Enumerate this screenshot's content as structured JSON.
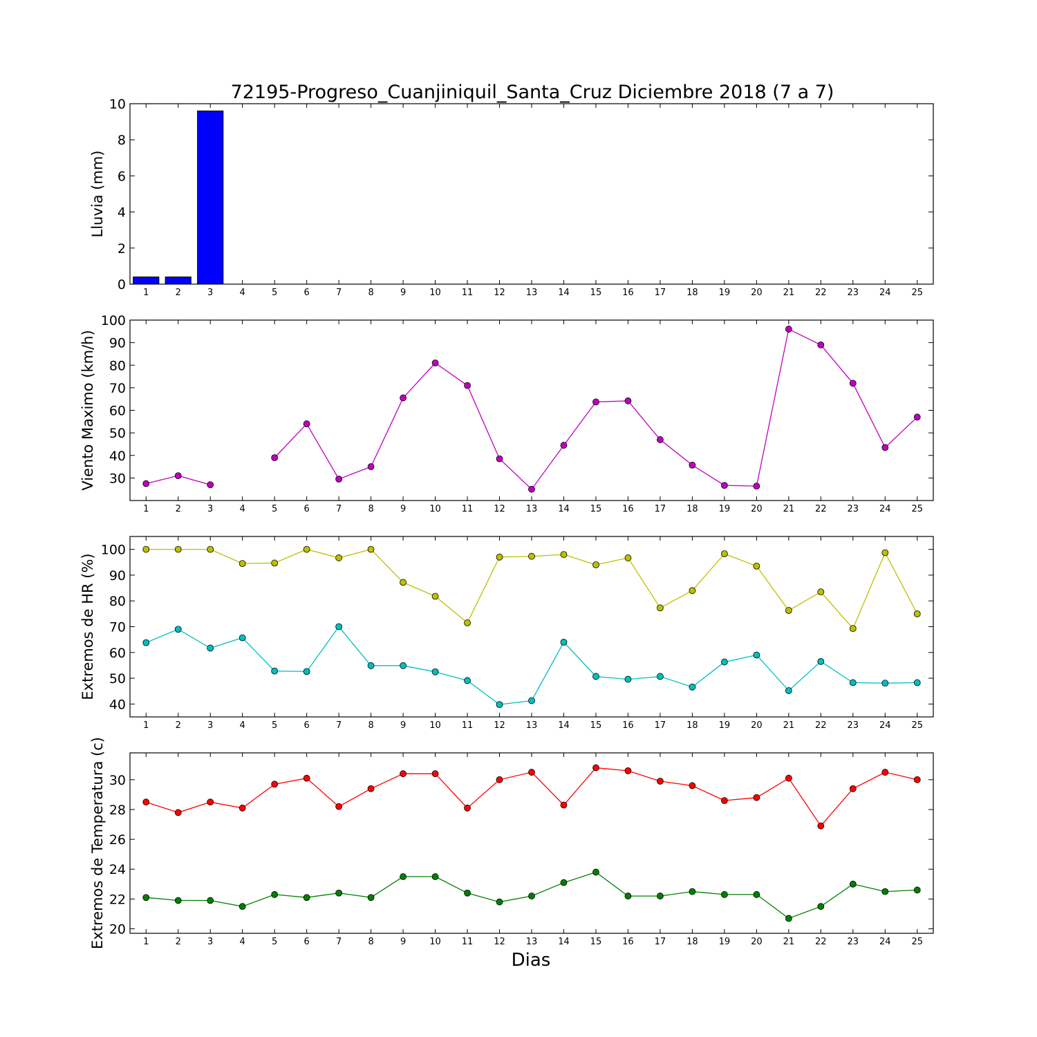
{
  "chart_data": {
    "title": "72195-Progreso_Cuanjiniquil_Santa_Cruz Diciembre 2018  (7 a 7)",
    "xlabel": "Dias",
    "days": [
      1,
      2,
      3,
      4,
      5,
      6,
      7,
      8,
      9,
      10,
      11,
      12,
      13,
      14,
      15,
      16,
      17,
      18,
      19,
      20,
      21,
      22,
      23,
      24,
      25
    ],
    "panels": [
      {
        "type": "bar",
        "ylabel": "Lluvia (mm)",
        "ylim": [
          0,
          10
        ],
        "yticks": [
          0,
          2,
          4,
          6,
          8,
          10
        ],
        "grid": false,
        "series": [
          {
            "color": "#0000ff",
            "values": [
              0.4,
              0.4,
              9.6,
              0,
              0,
              0,
              0,
              0,
              0,
              0,
              0,
              0,
              0,
              0,
              0,
              0,
              0,
              0,
              0,
              0,
              0,
              0,
              0,
              0,
              0
            ]
          }
        ]
      },
      {
        "type": "line",
        "ylabel": "Viento Maximo (km/h)",
        "ylim": [
          20,
          100
        ],
        "yticks": [
          30,
          40,
          50,
          60,
          70,
          80,
          90,
          100
        ],
        "grid": false,
        "series": [
          {
            "color": "#bf00bf",
            "values": [
              27.5,
              31,
              27,
              null,
              39,
              54,
              29.5,
              35,
              65.5,
              81,
              71,
              38.5,
              25,
              44.5,
              63.7,
              64.2,
              47,
              35.7,
              26.7,
              26.4,
              96,
              89,
              72,
              43.5,
              57
            ]
          }
        ]
      },
      {
        "type": "line",
        "ylabel": "Extremos de HR (%)",
        "ylim": [
          35,
          105
        ],
        "yticks": [
          40,
          50,
          60,
          70,
          80,
          90,
          100
        ],
        "grid": false,
        "series": [
          {
            "color": "#bfbf00",
            "values": [
              100,
              100,
              100,
              94.5,
              94.7,
              100,
              96.7,
              100,
              87.2,
              81.8,
              71.5,
              97,
              97.3,
              98,
              94,
              96.7,
              77.3,
              84,
              98.3,
              93.5,
              76.3,
              83.5,
              69.3,
              98.7,
              75
            ]
          },
          {
            "color": "#00bfbf",
            "values": [
              63.8,
              69,
              61.7,
              65.7,
              52.8,
              52.6,
              70,
              54.9,
              54.9,
              52.5,
              49.1,
              39.8,
              41.3,
              64,
              50.7,
              49.6,
              50.7,
              46.6,
              56.3,
              59,
              45.2,
              56.5,
              48.3,
              48.1,
              48.3
            ]
          }
        ]
      },
      {
        "type": "line",
        "ylabel": "Extremos de Temperatura (c)",
        "ylim": [
          19.7,
          31.8
        ],
        "yticks": [
          20,
          22,
          24,
          26,
          28,
          30
        ],
        "grid": false,
        "series": [
          {
            "color": "#ff0000",
            "values": [
              28.5,
              27.8,
              28.5,
              28.1,
              29.7,
              30.1,
              28.2,
              29.4,
              30.4,
              30.4,
              28.1,
              30,
              30.5,
              28.3,
              30.8,
              30.6,
              29.9,
              29.6,
              28.6,
              28.8,
              30.1,
              26.9,
              29.4,
              30.5,
              30
            ]
          },
          {
            "color": "#008000",
            "values": [
              22.1,
              21.9,
              21.9,
              21.5,
              22.3,
              22.1,
              22.4,
              22.1,
              23.5,
              23.5,
              22.4,
              21.8,
              22.2,
              23.1,
              23.8,
              22.2,
              22.2,
              22.5,
              22.3,
              22.3,
              20.7,
              21.5,
              23,
              22.5,
              22.6
            ]
          }
        ]
      }
    ]
  }
}
